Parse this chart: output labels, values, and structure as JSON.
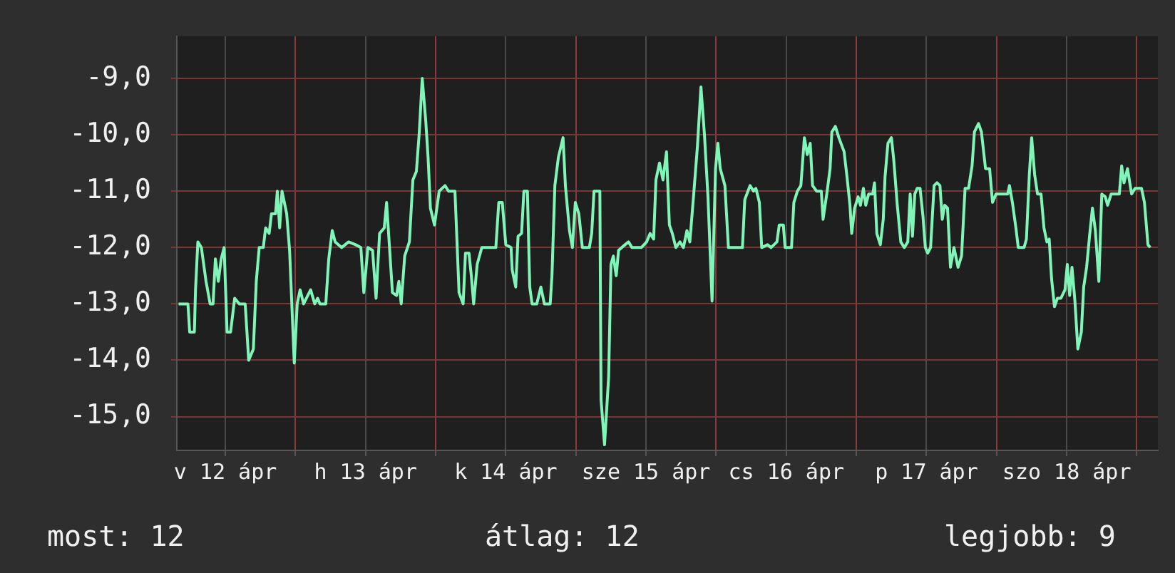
{
  "chart_data": {
    "type": "line",
    "annotations": [
      "most: 12",
      "átlag: 12",
      "legjobb: 9"
    ],
    "x": [
      "--04-12T04:00",
      "--04-12T05:36",
      "--04-12T05:54",
      "--04-12T06:42",
      "--04-12T06:54",
      "--04-12T07:18",
      "--04-12T07:54",
      "--04-12T08:42",
      "--04-12T09:24",
      "--04-12T09:54",
      "--04-12T10:18",
      "--04-12T10:48",
      "--04-12T11:18",
      "--04-12T11:48",
      "--04-12T12:18",
      "--04-12T12:54",
      "--04-12T13:36",
      "--04-12T14:24",
      "--04-12T15:24",
      "--04-12T16:00",
      "--04-12T16:48",
      "--04-12T17:18",
      "--04-12T17:48",
      "--04-12T18:30",
      "--04-12T18:54",
      "--04-12T19:30",
      "--04-12T19:54",
      "--04-12T20:36",
      "--04-12T20:54",
      "--04-12T21:18",
      "--04-12T21:42",
      "--04-12T22:30",
      "--04-12T23:00",
      "--04-12T23:48",
      "--04-13T00:18",
      "--04-13T00:48",
      "--04-13T01:24",
      "--04-13T02:36",
      "--04-13T03:18",
      "--04-13T03:48",
      "--04-13T04:12",
      "--04-13T05:12",
      "--04-13T05:42",
      "--04-13T06:18",
      "--04-13T06:48",
      "--04-13T07:54",
      "--04-13T09:06",
      "--04-13T10:18",
      "--04-13T11:12",
      "--04-13T11:42",
      "--04-13T12:24",
      "--04-13T13:12",
      "--04-13T13:48",
      "--04-13T14:24",
      "--04-13T15:12",
      "--04-13T15:36",
      "--04-13T16:06",
      "--04-13T16:36",
      "--04-13T17:18",
      "--04-13T17:42",
      "--04-13T18:06",
      "--04-13T18:42",
      "--04-13T19:30",
      "--04-13T20:06",
      "--04-13T20:42",
      "--04-13T21:12",
      "--04-13T21:42",
      "--04-13T22:18",
      "--04-13T22:42",
      "--04-13T23:06",
      "--04-13T23:48",
      "--04-14T00:36",
      "--04-14T01:36",
      "--04-14T02:12",
      "--04-14T03:18",
      "--04-14T04:00",
      "--04-14T04:42",
      "--04-14T05:06",
      "--04-14T05:42",
      "--04-14T06:06",
      "--04-14T06:30",
      "--04-14T07:06",
      "--04-14T07:54",
      "--04-14T10:18",
      "--04-14T10:48",
      "--04-14T11:24",
      "--04-14T12:00",
      "--04-14T12:54",
      "--04-14T13:06",
      "--04-14T13:42",
      "--04-14T14:06",
      "--04-14T14:42",
      "--04-14T15:06",
      "--04-14T15:42",
      "--04-14T16:06",
      "--04-14T16:30",
      "--04-14T17:18",
      "--04-14T18:00",
      "--04-14T18:36",
      "--04-14T19:36",
      "--04-14T19:54",
      "--04-14T20:24",
      "--04-14T21:00",
      "--04-14T21:48",
      "--04-14T22:12",
      "--04-14T22:54",
      "--04-14T23:24",
      "--04-14T23:54",
      "--04-15T00:30",
      "--04-15T01:06",
      "--04-15T02:18",
      "--04-15T02:42",
      "--04-15T03:06",
      "--04-15T04:06",
      "--04-15T04:18",
      "--04-15T04:54",
      "--04-15T05:36",
      "--04-15T06:00",
      "--04-15T06:24",
      "--04-15T06:54",
      "--04-15T07:18",
      "--04-15T08:24",
      "--04-15T09:00",
      "--04-15T09:36",
      "--04-15T11:12",
      "--04-15T12:06",
      "--04-15T12:42",
      "--04-15T13:18",
      "--04-15T13:42",
      "--04-15T14:18",
      "--04-15T14:54",
      "--04-15T15:30",
      "--04-15T16:00",
      "--04-15T16:30",
      "--04-15T17:06",
      "--04-15T17:48",
      "--04-15T18:24",
      "--04-15T19:00",
      "--04-15T19:30",
      "--04-15T20:12",
      "--04-15T20:48",
      "--04-15T21:24",
      "--04-15T22:00",
      "--04-15T22:36",
      "--04-15T23:18",
      "--04-15T23:54",
      "--04-16T00:18",
      "--04-16T00:42",
      "--04-16T01:30",
      "--04-16T02:06",
      "--04-16T04:30",
      "--04-16T04:54",
      "--04-16T05:48",
      "--04-16T06:24",
      "--04-16T06:48",
      "--04-16T07:24",
      "--04-16T07:48",
      "--04-16T08:48",
      "--04-16T09:24",
      "--04-16T10:24",
      "--04-16T10:48",
      "--04-16T11:30",
      "--04-16T11:48",
      "--04-16T12:54",
      "--04-16T13:18",
      "--04-16T13:54",
      "--04-16T14:30",
      "--04-16T15:06",
      "--04-16T15:36",
      "--04-16T16:06",
      "--04-16T16:30",
      "--04-16T17:12",
      "--04-16T18:00",
      "--04-16T18:18",
      "--04-16T19:00",
      "--04-16T19:30",
      "--04-16T19:48",
      "--04-16T20:24",
      "--04-16T21:00",
      "--04-16T21:54",
      "--04-16T22:24",
      "--04-16T22:54",
      "--04-16T23:12",
      "--04-16T23:42",
      "--04-17T00:18",
      "--04-17T00:42",
      "--04-17T01:12",
      "--04-17T01:36",
      "--04-17T02:06",
      "--04-17T02:48",
      "--04-17T03:06",
      "--04-17T03:30",
      "--04-17T04:06",
      "--04-17T04:36",
      "--04-17T04:54",
      "--04-17T05:24",
      "--04-17T06:00",
      "--04-17T06:24",
      "--04-17T07:00",
      "--04-17T07:36",
      "--04-17T08:12",
      "--04-17T08:48",
      "--04-17T09:12",
      "--04-17T09:36",
      "--04-17T10:00",
      "--04-17T10:24",
      "--04-17T10:54",
      "--04-17T11:24",
      "--04-17T11:48",
      "--04-17T12:12",
      "--04-17T12:42",
      "--04-17T13:18",
      "--04-17T13:48",
      "--04-17T14:18",
      "--04-17T14:42",
      "--04-17T15:06",
      "--04-17T15:36",
      "--04-17T16:06",
      "--04-17T16:42",
      "--04-17T17:24",
      "--04-17T18:00",
      "--04-17T18:36",
      "--04-17T19:12",
      "--04-17T19:48",
      "--04-17T20:12",
      "--04-17T20:54",
      "--04-17T21:24",
      "--04-17T22:06",
      "--04-17T22:48",
      "--04-17T23:18",
      "--04-17T23:54",
      "--04-18T01:54",
      "--04-18T02:12",
      "--04-18T02:42",
      "--04-18T03:18",
      "--04-18T03:42",
      "--04-18T04:42",
      "--04-18T05:06",
      "--04-18T05:36",
      "--04-18T06:00",
      "--04-18T06:30",
      "--04-18T07:00",
      "--04-18T07:36",
      "--04-18T08:06",
      "--04-18T08:36",
      "--04-18T09:00",
      "--04-18T09:24",
      "--04-18T09:54",
      "--04-18T10:24",
      "--04-18T11:00",
      "--04-18T11:42",
      "--04-18T12:06",
      "--04-18T12:30",
      "--04-18T12:54",
      "--04-18T13:24",
      "--04-18T13:54",
      "--04-18T14:30",
      "--04-18T14:54",
      "--04-18T15:24",
      "--04-18T15:54",
      "--04-18T16:24",
      "--04-18T16:54",
      "--04-18T17:30",
      "--04-18T18:00",
      "--04-18T18:36",
      "--04-18T19:00",
      "--04-18T19:36",
      "--04-18T21:00",
      "--04-18T21:24",
      "--04-18T21:48",
      "--04-18T22:24",
      "--04-18T23:06",
      "--04-18T23:42",
      "--04-19T00:48",
      "--04-19T01:18",
      "--04-19T01:54",
      "--04-19T02:18"
    ],
    "series": [
      {
        "color": "#80f5b8",
        "values": [
          -13.0,
          -13.0,
          -13.5,
          -13.5,
          -12.75,
          -11.9,
          -12.0,
          -12.6,
          -13.0,
          -13.0,
          -12.2,
          -12.6,
          -12.2,
          -12.0,
          -13.5,
          -13.5,
          -12.9,
          -13.0,
          -13.0,
          -14.0,
          -13.8,
          -12.6,
          -12.0,
          -12.0,
          -11.65,
          -11.75,
          -11.4,
          -11.4,
          -11.0,
          -11.65,
          -11.0,
          -11.4,
          -12.05,
          -14.05,
          -13.0,
          -12.75,
          -13.0,
          -12.75,
          -13.0,
          -12.9,
          -13.0,
          -13.0,
          -12.2,
          -11.7,
          -11.9,
          -12.0,
          -11.9,
          -11.95,
          -12.0,
          -12.8,
          -12.0,
          -12.05,
          -12.9,
          -11.75,
          -11.65,
          -11.2,
          -12.0,
          -12.8,
          -12.85,
          -12.6,
          -13.0,
          -12.15,
          -11.9,
          -10.8,
          -10.65,
          -9.95,
          -9.0,
          -9.75,
          -10.4,
          -11.3,
          -11.6,
          -11.0,
          -10.9,
          -11.0,
          -11.0,
          -12.8,
          -13.0,
          -12.1,
          -12.1,
          -12.5,
          -13.0,
          -12.3,
          -12.0,
          -12.0,
          -11.2,
          -11.2,
          -11.95,
          -12.0,
          -12.4,
          -12.7,
          -11.8,
          -11.75,
          -11.0,
          -11.0,
          -12.7,
          -13.0,
          -13.0,
          -12.7,
          -13.0,
          -13.0,
          -12.5,
          -10.9,
          -10.4,
          -10.05,
          -10.9,
          -11.7,
          -12.0,
          -11.2,
          -11.4,
          -12.0,
          -12.0,
          -11.75,
          -11.0,
          -11.0,
          -14.7,
          -15.5,
          -14.3,
          -12.3,
          -12.15,
          -12.5,
          -12.05,
          -11.95,
          -11.9,
          -12.0,
          -12.0,
          -11.9,
          -11.75,
          -11.85,
          -10.8,
          -10.5,
          -10.8,
          -10.3,
          -11.6,
          -11.75,
          -12.0,
          -11.9,
          -12.0,
          -11.7,
          -11.9,
          -11.0,
          -10.2,
          -9.15,
          -10.0,
          -11.1,
          -12.95,
          -10.6,
          -10.15,
          -10.6,
          -10.9,
          -12.0,
          -12.0,
          -11.15,
          -10.9,
          -11.0,
          -10.95,
          -11.2,
          -12.0,
          -11.95,
          -12.0,
          -11.9,
          -11.6,
          -11.6,
          -12.0,
          -12.0,
          -11.2,
          -11.0,
          -10.9,
          -10.05,
          -10.35,
          -10.15,
          -10.9,
          -11.0,
          -11.0,
          -11.5,
          -11.0,
          -10.6,
          -9.95,
          -9.85,
          -10.05,
          -10.3,
          -10.75,
          -11.25,
          -11.75,
          -11.3,
          -11.1,
          -11.25,
          -10.95,
          -11.25,
          -11.05,
          -11.05,
          -10.85,
          -11.75,
          -11.95,
          -11.5,
          -10.75,
          -10.15,
          -10.05,
          -10.45,
          -11.25,
          -11.9,
          -12.0,
          -11.9,
          -11.05,
          -11.8,
          -11.05,
          -10.95,
          -10.95,
          -11.45,
          -12.0,
          -12.1,
          -12.0,
          -10.9,
          -10.85,
          -10.9,
          -11.5,
          -11.25,
          -11.3,
          -12.35,
          -12.0,
          -12.35,
          -12.15,
          -10.95,
          -10.95,
          -10.55,
          -9.95,
          -9.8,
          -9.95,
          -10.6,
          -10.6,
          -11.2,
          -11.05,
          -11.05,
          -10.9,
          -11.2,
          -11.65,
          -12.0,
          -12.0,
          -11.85,
          -10.7,
          -10.05,
          -10.7,
          -11.05,
          -11.05,
          -11.65,
          -11.9,
          -11.85,
          -12.55,
          -13.05,
          -12.9,
          -12.9,
          -12.75,
          -12.3,
          -12.85,
          -12.35,
          -12.95,
          -13.8,
          -13.5,
          -12.7,
          -12.35,
          -11.8,
          -11.3,
          -11.7,
          -12.6,
          -11.05,
          -11.1,
          -11.25,
          -11.05,
          -11.05,
          -10.55,
          -10.85,
          -10.6,
          -11.05,
          -10.95,
          -10.95,
          -11.2,
          -11.95,
          -12.0
        ]
      }
    ],
    "xlim": [
      "--04-12T03:42",
      "--04-19T03:36"
    ],
    "xticks": [
      {
        "value": "--04-12T12:00",
        "label": "v 12 ápr"
      },
      {
        "value": "--04-13",
        "label": null
      },
      {
        "value": "--04-13T12:00",
        "label": "h 13 ápr"
      },
      {
        "value": "--04-14",
        "label": null
      },
      {
        "value": "--04-14T12:00",
        "label": "k 14 ápr"
      },
      {
        "value": "--04-15",
        "label": null
      },
      {
        "value": "--04-15T12:00",
        "label": "sze 15 ápr"
      },
      {
        "value": "--04-16",
        "label": null
      },
      {
        "value": "--04-16T12:00",
        "label": "cs 16 ápr"
      },
      {
        "value": "--04-17",
        "label": null
      },
      {
        "value": "--04-17T12:00",
        "label": "p 17 ápr"
      },
      {
        "value": "--04-18",
        "label": null
      },
      {
        "value": "--04-18T12:00",
        "label": "szo 18 ápr"
      },
      {
        "value": "--04-19",
        "label": null
      }
    ],
    "ylim": [
      -15.6,
      -8.25
    ],
    "yticks": [
      {
        "value": -15,
        "label": "-15,0"
      },
      {
        "value": -14,
        "label": "-14,0"
      },
      {
        "value": -13,
        "label": "-13,0"
      },
      {
        "value": -12,
        "label": "-12,0"
      },
      {
        "value": -11,
        "label": "-11,0"
      },
      {
        "value": -10,
        "label": "-10,0"
      },
      {
        "value": -9,
        "label": "-9,0"
      }
    ],
    "grid": true,
    "legend": false,
    "marker": "none",
    "line_style": "solid"
  }
}
